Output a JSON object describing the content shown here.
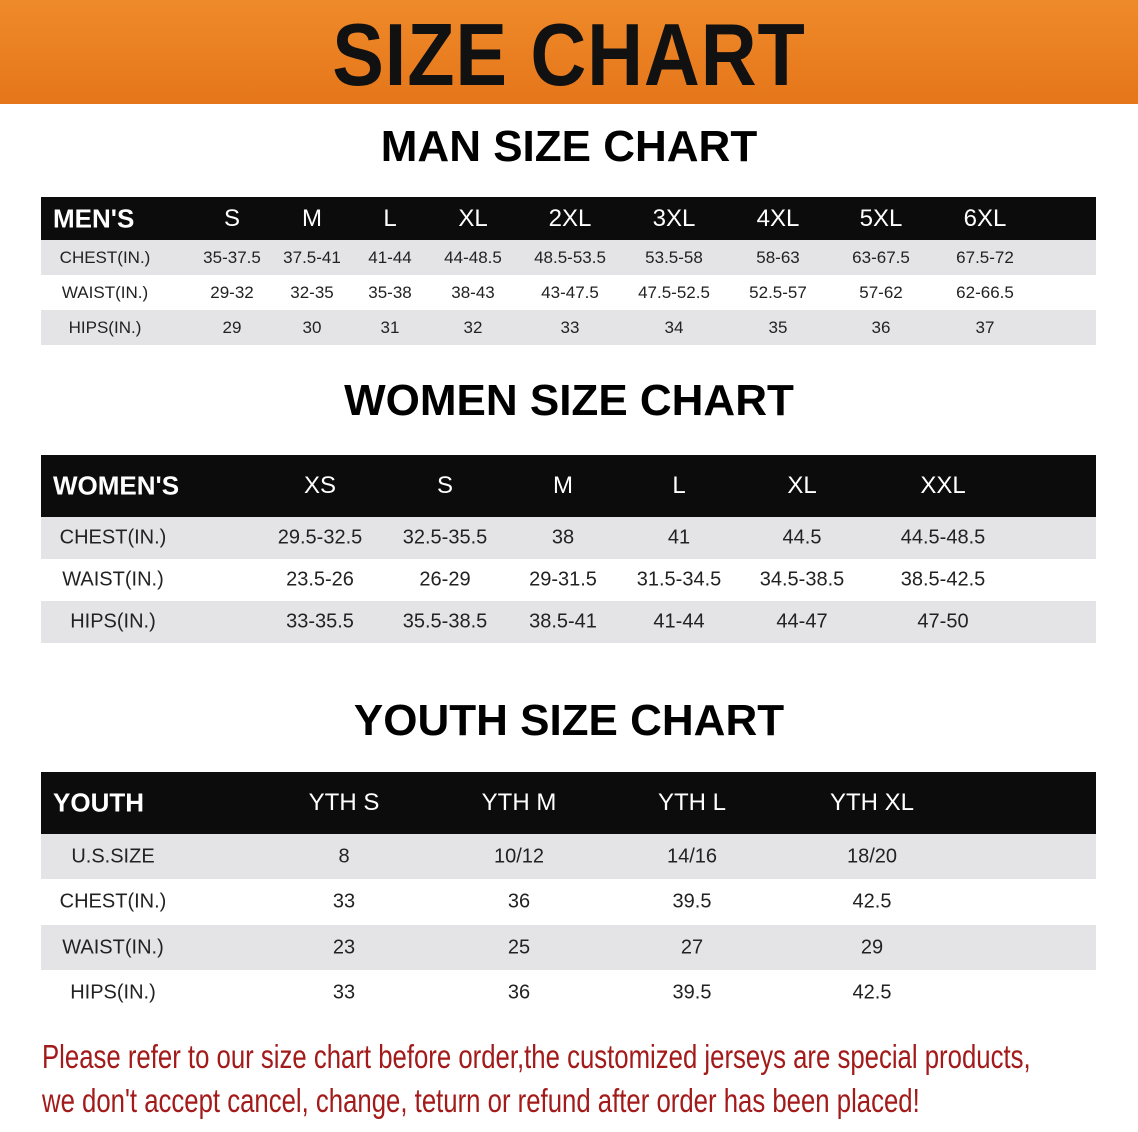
{
  "banner": {
    "title": "SIZE CHART",
    "color": "#e8801f"
  },
  "men": {
    "title": "MAN SIZE CHART",
    "header": [
      "MEN'S",
      "S",
      "M",
      "L",
      "XL",
      "2XL",
      "3XL",
      "4XL",
      "5XL",
      "6XL"
    ],
    "rows": [
      [
        "CHEST(IN.)",
        "35-37.5",
        "37.5-41",
        "41-44",
        "44-48.5",
        "48.5-53.5",
        "53.5-58",
        "58-63",
        "63-67.5",
        "67.5-72"
      ],
      [
        "WAIST(IN.)",
        "29-32",
        "32-35",
        "35-38",
        "38-43",
        "43-47.5",
        "47.5-52.5",
        "52.5-57",
        "57-62",
        "62-66.5"
      ],
      [
        "HIPS(IN.)",
        "29",
        "30",
        "31",
        "32",
        "33",
        "34",
        "35",
        "36",
        "37"
      ]
    ]
  },
  "women": {
    "title": "WOMEN SIZE CHART",
    "header": [
      "WOMEN'S",
      "XS",
      "S",
      "M",
      "L",
      "XL",
      "XXL"
    ],
    "rows": [
      [
        "CHEST(IN.)",
        "29.5-32.5",
        "32.5-35.5",
        "38",
        "41",
        "44.5",
        "44.5-48.5"
      ],
      [
        "WAIST(IN.)",
        "23.5-26",
        "26-29",
        "29-31.5",
        "31.5-34.5",
        "34.5-38.5",
        "38.5-42.5"
      ],
      [
        "HIPS(IN.)",
        "33-35.5",
        "35.5-38.5",
        "38.5-41",
        "41-44",
        "44-47",
        "47-50"
      ]
    ]
  },
  "youth": {
    "title": "YOUTH SIZE CHART",
    "header": [
      "YOUTH",
      "YTH S",
      "YTH M",
      "YTH L",
      "YTH XL"
    ],
    "rows": [
      [
        "U.S.SIZE",
        "8",
        "10/12",
        "14/16",
        "18/20"
      ],
      [
        "CHEST(IN.)",
        "33",
        "36",
        "39.5",
        "42.5"
      ],
      [
        "WAIST(IN.)",
        "23",
        "25",
        "27",
        "29"
      ],
      [
        "HIPS(IN.)",
        "33",
        "36",
        "39.5",
        "42.5"
      ]
    ]
  },
  "notice": {
    "line1": "Please refer to our size chart before order,the customized jerseys are special products,",
    "line2": "we don't accept cancel, change, teturn or refund after order has been placed!",
    "color": "#a31a1a"
  }
}
